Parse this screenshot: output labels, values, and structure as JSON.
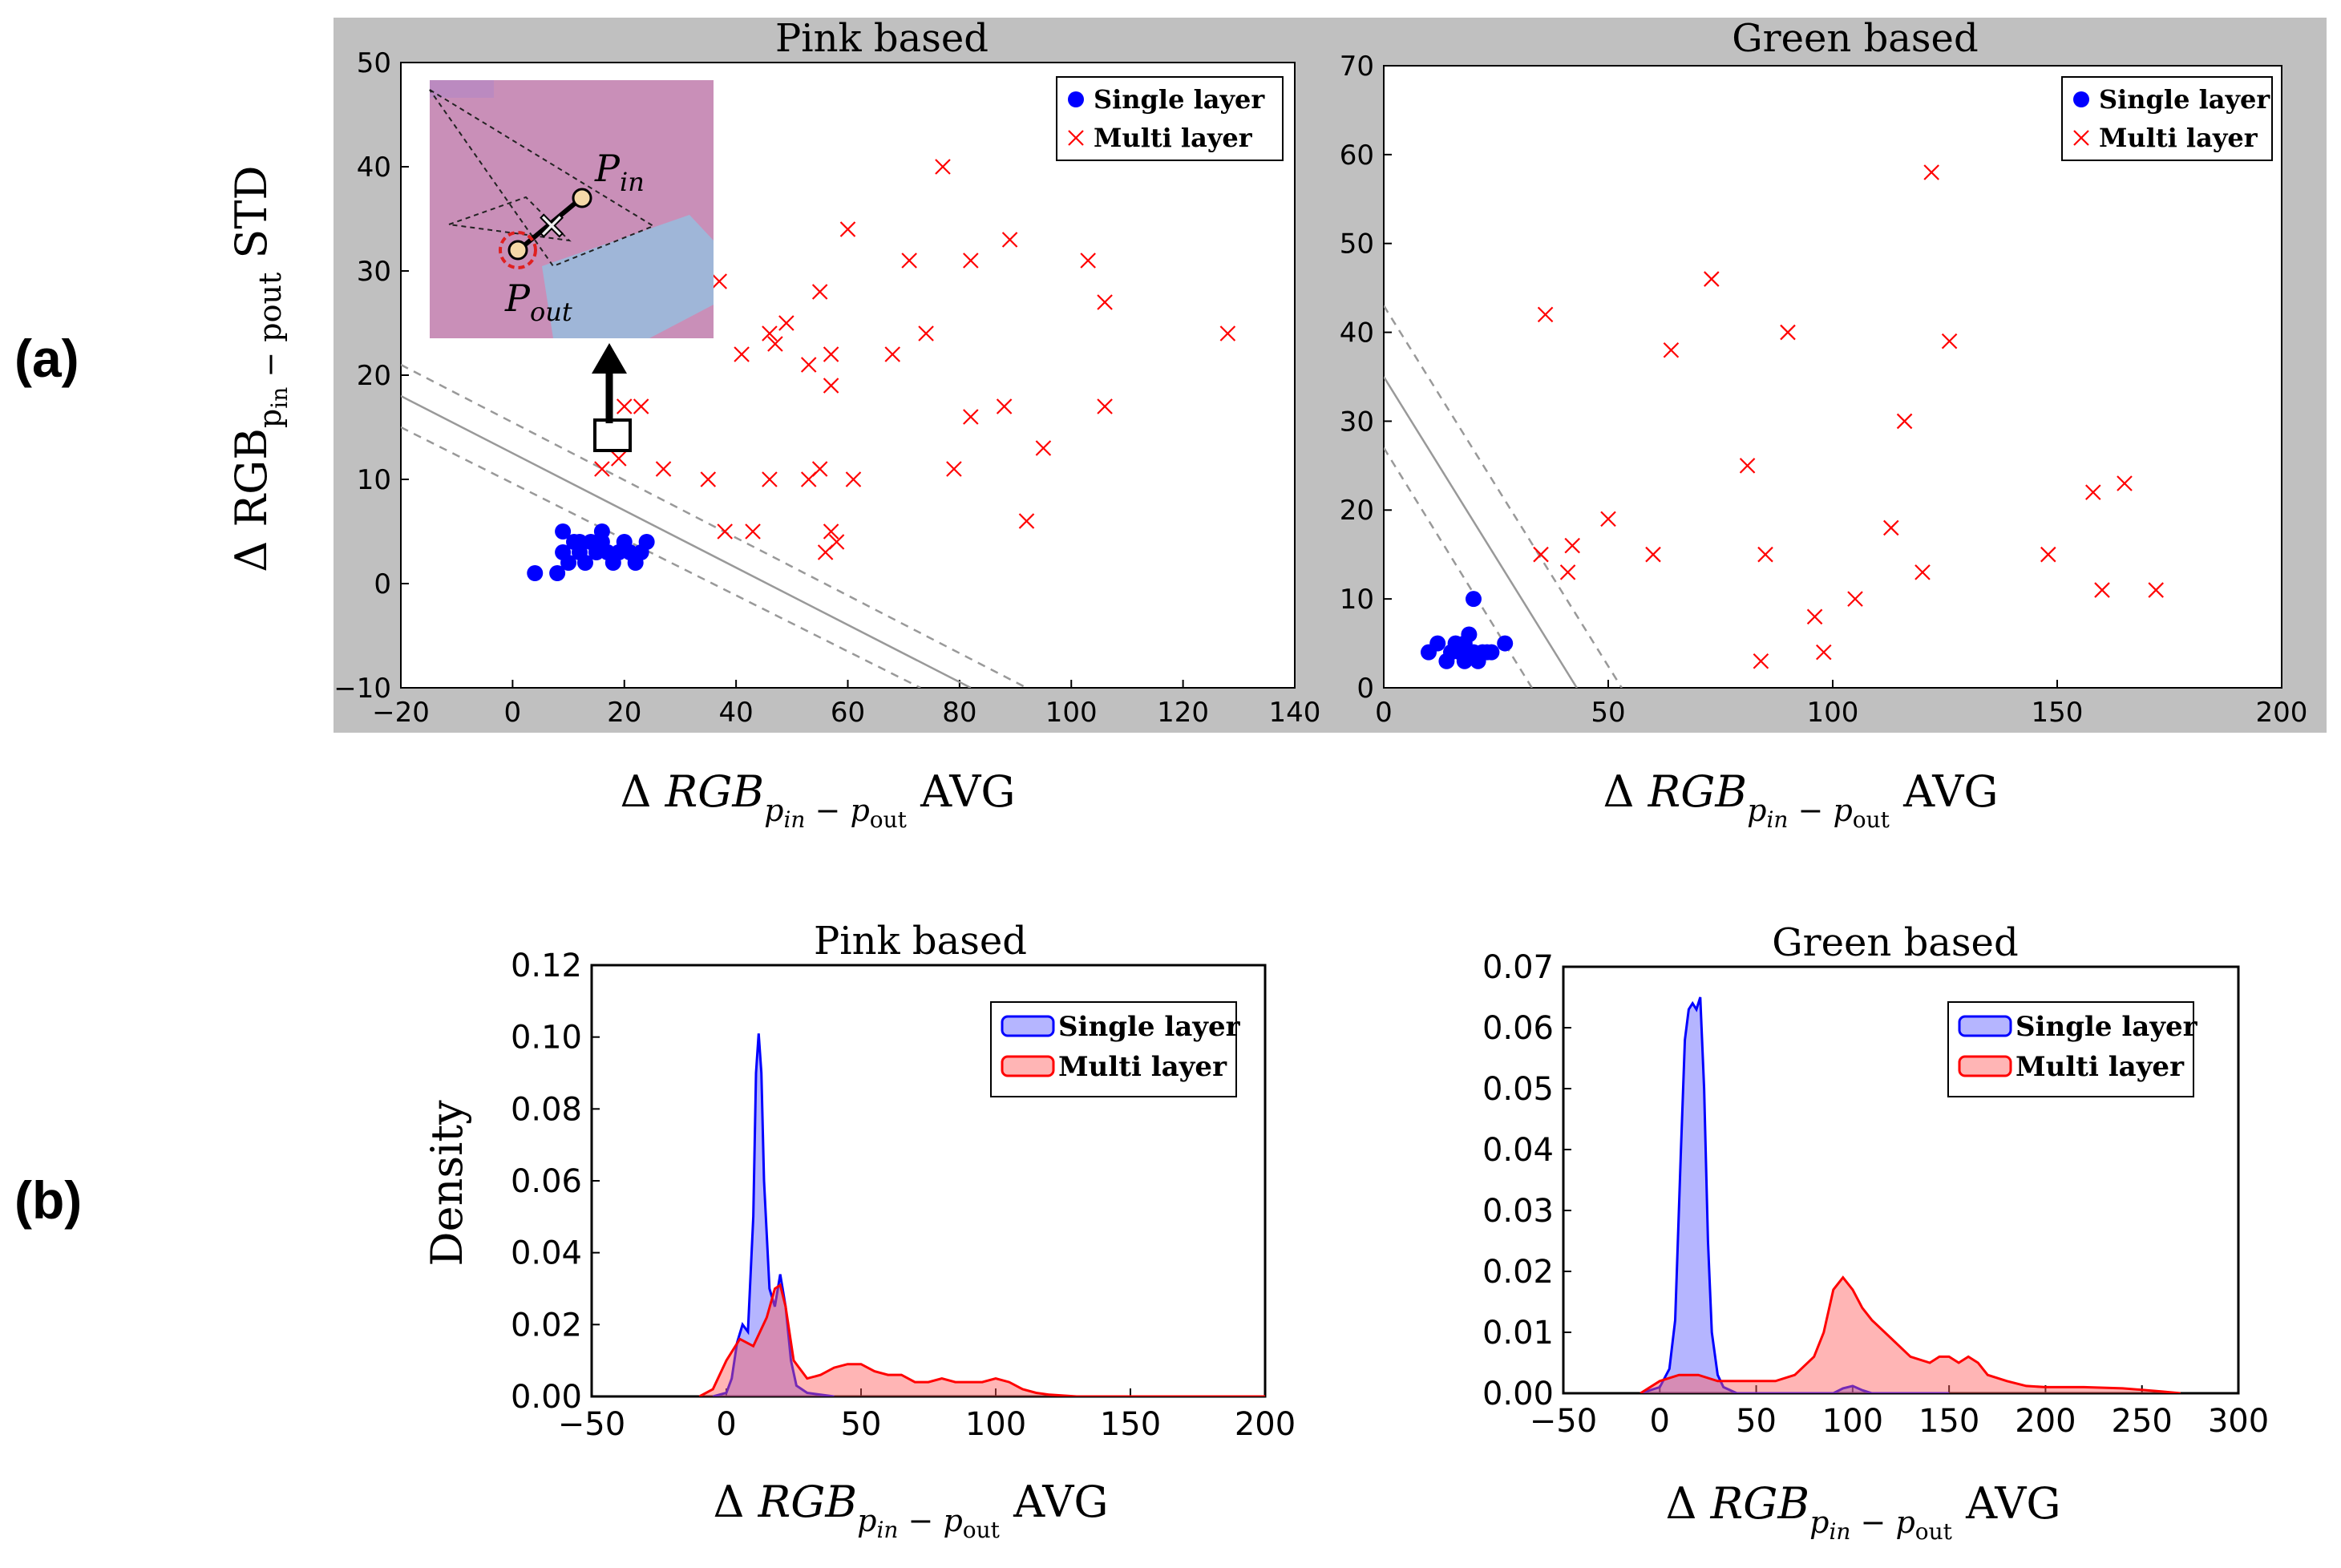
{
  "panels": {
    "a": "(a)",
    "b": "(b)"
  },
  "chart_data": [
    {
      "type": "scatter",
      "title": "Pink based",
      "xlabel": "Δ RGB p_in - p_out AVG",
      "ylabel": "Δ RGB p_in - pout STD",
      "xlim": [
        -20,
        140
      ],
      "ylim": [
        -10,
        50
      ],
      "xticks": [
        -20,
        0,
        20,
        40,
        60,
        80,
        100,
        120,
        140
      ],
      "yticks": [
        -10,
        0,
        10,
        20,
        30,
        40,
        50
      ],
      "legend": [
        "Single layer",
        "Multi layer"
      ],
      "series": [
        {
          "name": "Single layer",
          "marker": "circle",
          "color": "#0000ff",
          "points": [
            [
              4,
              1
            ],
            [
              8,
              1
            ],
            [
              9,
              3
            ],
            [
              10,
              2
            ],
            [
              11,
              4
            ],
            [
              12,
              3
            ],
            [
              13,
              2
            ],
            [
              14,
              4
            ],
            [
              15,
              3
            ],
            [
              16,
              4
            ],
            [
              17,
              3
            ],
            [
              18,
              2
            ],
            [
              19,
              3
            ],
            [
              20,
              4
            ],
            [
              21,
              3
            ],
            [
              22,
              2
            ],
            [
              23,
              3
            ],
            [
              24,
              4
            ],
            [
              9,
              5
            ],
            [
              12,
              4
            ],
            [
              16,
              5
            ]
          ]
        },
        {
          "name": "Multi layer",
          "marker": "x",
          "color": "#ff0000",
          "points": [
            [
              77,
              40
            ],
            [
              89,
              33
            ],
            [
              60,
              34
            ],
            [
              71,
              31
            ],
            [
              82,
              31
            ],
            [
              103,
              31
            ],
            [
              106,
              27
            ],
            [
              37,
              29
            ],
            [
              55,
              28
            ],
            [
              49,
              25
            ],
            [
              46,
              24
            ],
            [
              47,
              23
            ],
            [
              41,
              22
            ],
            [
              57,
              22
            ],
            [
              68,
              22
            ],
            [
              74,
              24
            ],
            [
              128,
              24
            ],
            [
              53,
              21
            ],
            [
              57,
              19
            ],
            [
              82,
              16
            ],
            [
              88,
              17
            ],
            [
              106,
              17
            ],
            [
              95,
              13
            ],
            [
              79,
              11
            ],
            [
              61,
              10
            ],
            [
              46,
              10
            ],
            [
              53,
              10
            ],
            [
              55,
              11
            ],
            [
              35,
              10
            ],
            [
              27,
              11
            ],
            [
              20,
              17
            ],
            [
              23,
              17
            ],
            [
              19,
              12
            ],
            [
              16,
              11
            ],
            [
              38,
              5
            ],
            [
              43,
              5
            ],
            [
              57,
              5
            ],
            [
              58,
              4
            ],
            [
              56,
              3
            ],
            [
              92,
              6
            ]
          ]
        }
      ],
      "decision_boundary": {
        "solid": [
          [
            -20,
            18
          ],
          [
            82,
            -10
          ]
        ],
        "upper_margin": [
          [
            -20,
            21
          ],
          [
            92,
            -10
          ]
        ],
        "lower_margin": [
          [
            -20,
            15
          ],
          [
            73,
            -10
          ]
        ]
      },
      "inset": {
        "labels": [
          "P_in",
          "P_out"
        ],
        "highlighted_point": [
          16,
          14
        ]
      }
    },
    {
      "type": "scatter",
      "title": "Green based",
      "xlabel": "Δ RGB p_in - p_out AVG",
      "xlim": [
        0,
        200
      ],
      "ylim": [
        0,
        70
      ],
      "xticks": [
        0,
        50,
        100,
        150,
        200
      ],
      "yticks": [
        0,
        10,
        20,
        30,
        40,
        50,
        60,
        70
      ],
      "legend": [
        "Single layer",
        "Multi layer"
      ],
      "series": [
        {
          "name": "Single layer",
          "marker": "circle",
          "color": "#0000ff",
          "points": [
            [
              10,
              4
            ],
            [
              12,
              5
            ],
            [
              14,
              3
            ],
            [
              15,
              4
            ],
            [
              16,
              5
            ],
            [
              17,
              4
            ],
            [
              18,
              3
            ],
            [
              19,
              6
            ],
            [
              20,
              4
            ],
            [
              21,
              3
            ],
            [
              22,
              4
            ],
            [
              23,
              4
            ],
            [
              24,
              4
            ],
            [
              27,
              5
            ],
            [
              20,
              10
            ],
            [
              18,
              5
            ]
          ]
        },
        {
          "name": "Multi layer",
          "marker": "x",
          "color": "#ff0000",
          "points": [
            [
              122,
              58
            ],
            [
              73,
              46
            ],
            [
              36,
              42
            ],
            [
              90,
              40
            ],
            [
              64,
              38
            ],
            [
              126,
              39
            ],
            [
              116,
              30
            ],
            [
              81,
              25
            ],
            [
              158,
              22
            ],
            [
              165,
              23
            ],
            [
              50,
              19
            ],
            [
              113,
              18
            ],
            [
              42,
              16
            ],
            [
              35,
              15
            ],
            [
              60,
              15
            ],
            [
              85,
              15
            ],
            [
              148,
              15
            ],
            [
              41,
              13
            ],
            [
              120,
              13
            ],
            [
              160,
              11
            ],
            [
              172,
              11
            ],
            [
              105,
              10
            ],
            [
              96,
              8
            ],
            [
              84,
              3
            ],
            [
              98,
              4
            ]
          ]
        }
      ],
      "decision_boundary": {
        "solid": [
          [
            0,
            35
          ],
          [
            43,
            0
          ]
        ],
        "upper_margin": [
          [
            0,
            43
          ],
          [
            53,
            0
          ]
        ],
        "lower_margin": [
          [
            0,
            27
          ],
          [
            33,
            0
          ]
        ]
      }
    },
    {
      "type": "area",
      "title": "Pink based",
      "xlabel": "Δ RGB p_in - p_out AVG",
      "ylabel": "Density",
      "xlim": [
        -50,
        200
      ],
      "ylim": [
        0,
        0.12
      ],
      "xticks": [
        -50,
        0,
        50,
        100,
        150,
        200
      ],
      "yticks": [
        "0.00",
        "0.02",
        "0.04",
        "0.06",
        "0.08",
        "0.10",
        "0.12"
      ],
      "legend": [
        "Single layer",
        "Multi layer"
      ],
      "series": [
        {
          "name": "Single layer",
          "color": "#0000ff",
          "x": [
            -5,
            0,
            2,
            4,
            6,
            8,
            10,
            11,
            12,
            13,
            14,
            16,
            18,
            20,
            22,
            24,
            26,
            30,
            40
          ],
          "y": [
            0,
            0.001,
            0.005,
            0.015,
            0.02,
            0.018,
            0.05,
            0.09,
            0.101,
            0.09,
            0.06,
            0.03,
            0.025,
            0.034,
            0.025,
            0.01,
            0.003,
            0.001,
            0
          ]
        },
        {
          "name": "Multi layer",
          "color": "#ff0000",
          "x": [
            -10,
            -5,
            0,
            5,
            10,
            15,
            18,
            20,
            22,
            25,
            30,
            35,
            40,
            45,
            50,
            55,
            60,
            65,
            70,
            75,
            80,
            85,
            90,
            95,
            100,
            105,
            110,
            115,
            120,
            130,
            140,
            150,
            200
          ],
          "y": [
            0,
            0.002,
            0.01,
            0.016,
            0.014,
            0.022,
            0.03,
            0.031,
            0.025,
            0.01,
            0.005,
            0.006,
            0.008,
            0.009,
            0.009,
            0.007,
            0.006,
            0.006,
            0.004,
            0.004,
            0.005,
            0.004,
            0.004,
            0.004,
            0.005,
            0.004,
            0.002,
            0.001,
            0.0005,
            0,
            0,
            0,
            0
          ]
        }
      ]
    },
    {
      "type": "area",
      "title": "Green based",
      "xlabel": "Δ RGB p_in - p_out AVG",
      "xlim": [
        -50,
        300
      ],
      "ylim": [
        0,
        0.07
      ],
      "xticks": [
        -50,
        0,
        50,
        100,
        150,
        200,
        250,
        300
      ],
      "yticks": [
        "0.00",
        "0.01",
        "0.02",
        "0.03",
        "0.04",
        "0.05",
        "0.06",
        "0.07"
      ],
      "legend": [
        "Single layer",
        "Multi layer"
      ],
      "series": [
        {
          "name": "Single layer",
          "color": "#0000ff",
          "x": [
            -10,
            0,
            5,
            8,
            11,
            13,
            15,
            17,
            19,
            21,
            23,
            25,
            27,
            30,
            33,
            40,
            80,
            90,
            95,
            100,
            105,
            110,
            150
          ],
          "y": [
            0,
            0.001,
            0.004,
            0.012,
            0.04,
            0.058,
            0.063,
            0.064,
            0.063,
            0.065,
            0.05,
            0.025,
            0.01,
            0.003,
            0.001,
            0,
            0,
            0,
            0.0008,
            0.0012,
            0.0005,
            0,
            0
          ]
        },
        {
          "name": "Multi layer",
          "color": "#ff0000",
          "x": [
            -10,
            0,
            10,
            20,
            30,
            40,
            50,
            60,
            70,
            80,
            85,
            90,
            95,
            100,
            105,
            110,
            120,
            130,
            140,
            145,
            150,
            155,
            160,
            165,
            170,
            180,
            190,
            200,
            220,
            240,
            260,
            270
          ],
          "y": [
            0,
            0.002,
            0.003,
            0.003,
            0.002,
            0.002,
            0.002,
            0.002,
            0.003,
            0.006,
            0.01,
            0.017,
            0.019,
            0.017,
            0.014,
            0.012,
            0.009,
            0.006,
            0.005,
            0.006,
            0.006,
            0.005,
            0.006,
            0.005,
            0.003,
            0.002,
            0.0012,
            0.001,
            0.001,
            0.0008,
            0.0003,
            0
          ]
        }
      ]
    }
  ]
}
